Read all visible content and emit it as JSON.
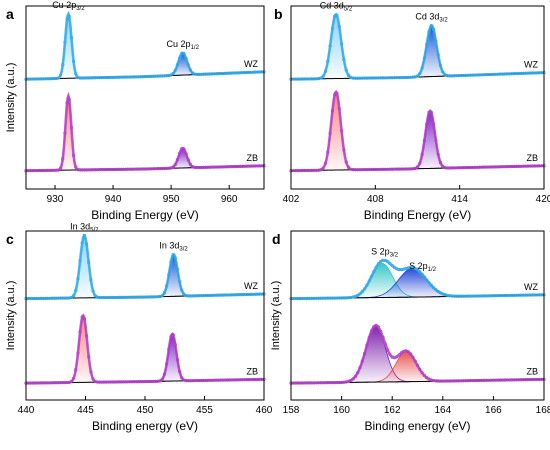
{
  "figure": {
    "panels": [
      {
        "letter": "a"
      },
      {
        "letter": "b"
      },
      {
        "letter": "c"
      },
      {
        "letter": "d"
      }
    ]
  },
  "chart_data": [
    {
      "type": "line",
      "panel": "a",
      "xlabel": "Binding Energy (eV)",
      "ylabel": "Intensity (a.u.)",
      "xlim": [
        925,
        966
      ],
      "xticks": [
        930,
        940,
        950,
        960
      ],
      "grid": false,
      "series": [
        {
          "name": "WZ",
          "color": "#33a8e8",
          "fill_colors": [
            "#7fd2ff",
            "#0d4fd6"
          ],
          "peaks": [
            {
              "center": 932.3,
              "height": 0.78,
              "width": 0.55
            },
            {
              "center": 952.0,
              "height": 0.27,
              "width": 0.75
            }
          ],
          "baseline": [
            {
              "x": 925,
              "y": 0.0
            },
            {
              "x": 945,
              "y": 0.03
            },
            {
              "x": 966,
              "y": 0.09
            }
          ]
        },
        {
          "name": "ZB",
          "color": "#b040c8",
          "fill_colors": [
            "#ff7a7a",
            "#7a1ac8"
          ],
          "peaks": [
            {
              "center": 932.3,
              "height": 0.9,
              "width": 0.5
            },
            {
              "center": 952.0,
              "height": 0.24,
              "width": 0.7
            }
          ],
          "baseline": [
            {
              "x": 925,
              "y": 0.0
            },
            {
              "x": 945,
              "y": 0.02
            },
            {
              "x": 966,
              "y": 0.06
            }
          ]
        }
      ],
      "annotations": [
        {
          "text": "Cu 2p",
          "sub": "3/2",
          "x": 932.3,
          "series": 0
        },
        {
          "text": "Cu 2p",
          "sub": "1/2",
          "x": 952.0,
          "series": 0
        }
      ]
    },
    {
      "type": "line",
      "panel": "b",
      "xlabel": "Binding Energy (eV)",
      "ylabel": "",
      "xlim": [
        402,
        420
      ],
      "xticks": [
        402,
        408,
        414,
        420
      ],
      "grid": false,
      "series": [
        {
          "name": "WZ",
          "color": "#33a8e8",
          "fill_colors": [
            "#7fd2ff",
            "#0d4fd6"
          ],
          "peaks": [
            {
              "center": 405.2,
              "height": 0.78,
              "width": 0.36
            },
            {
              "center": 412.0,
              "height": 0.62,
              "width": 0.36
            }
          ],
          "baseline": [
            {
              "x": 402,
              "y": 0.0
            },
            {
              "x": 410,
              "y": 0.02
            },
            {
              "x": 420,
              "y": 0.08
            }
          ]
        },
        {
          "name": "ZB",
          "color": "#b040c8",
          "fill_colors": [
            "#ff7a7a",
            "#7a1ac8"
          ],
          "peaks": [
            {
              "center": 405.2,
              "height": 0.95,
              "width": 0.34
            },
            {
              "center": 411.9,
              "height": 0.7,
              "width": 0.34
            }
          ],
          "baseline": [
            {
              "x": 402,
              "y": 0.0
            },
            {
              "x": 410,
              "y": 0.02
            },
            {
              "x": 420,
              "y": 0.06
            }
          ]
        }
      ],
      "annotations": [
        {
          "text": "Cd 3d",
          "sub": "5/2",
          "x": 405.2,
          "series": 0
        },
        {
          "text": "Cd 3d",
          "sub": "3/2",
          "x": 412.0,
          "series": 0
        }
      ]
    },
    {
      "type": "line",
      "panel": "c",
      "xlabel": "Binding energy (eV)",
      "ylabel": "Intensity (a.u.)",
      "xlim": [
        440,
        460
      ],
      "xticks": [
        440,
        445,
        450,
        455,
        460
      ],
      "grid": false,
      "series": [
        {
          "name": "WZ",
          "color": "#33a8e8",
          "fill_colors": [
            "#7fd2ff",
            "#0d4fd6"
          ],
          "peaks": [
            {
              "center": 444.9,
              "height": 0.82,
              "width": 0.35
            },
            {
              "center": 452.4,
              "height": 0.55,
              "width": 0.35
            }
          ],
          "baseline": [
            {
              "x": 440,
              "y": 0.0
            },
            {
              "x": 450,
              "y": 0.02
            },
            {
              "x": 460,
              "y": 0.06
            }
          ]
        },
        {
          "name": "ZB",
          "color": "#b040c8",
          "fill_colors": [
            "#ff7a7a",
            "#7a1ac8"
          ],
          "peaks": [
            {
              "center": 444.8,
              "height": 0.88,
              "width": 0.34
            },
            {
              "center": 452.3,
              "height": 0.62,
              "width": 0.34
            }
          ],
          "baseline": [
            {
              "x": 440,
              "y": 0.0
            },
            {
              "x": 450,
              "y": 0.02
            },
            {
              "x": 460,
              "y": 0.05
            }
          ]
        }
      ],
      "annotations": [
        {
          "text": "In 3d",
          "sub": "5/2",
          "x": 444.9,
          "series": 0
        },
        {
          "text": "In 3d",
          "sub": "3/2",
          "x": 452.4,
          "series": 0
        }
      ]
    },
    {
      "type": "line",
      "panel": "d",
      "xlabel": "Binding energy (eV)",
      "ylabel": "Intensity (a.u.)",
      "xlim": [
        158,
        168
      ],
      "xticks": [
        158,
        160,
        162,
        164,
        166,
        168
      ],
      "grid": false,
      "series": [
        {
          "name": "WZ",
          "color": "#33a8e8",
          "fill_colors": [
            "#2ec4c4",
            "#1a3fd6"
          ],
          "peaks": [
            {
              "center": 161.6,
              "height": 0.45,
              "width": 0.42
            },
            {
              "center": 162.8,
              "height": 0.38,
              "width": 0.55
            }
          ],
          "baseline": [
            {
              "x": 158,
              "y": 0.0
            },
            {
              "x": 163,
              "y": 0.02
            },
            {
              "x": 168,
              "y": 0.05
            }
          ]
        },
        {
          "name": "ZB",
          "color": "#b040c8",
          "fill_colors": [
            "#7a1aa8",
            "#e84a4a"
          ],
          "peaks": [
            {
              "center": 161.35,
              "height": 0.74,
              "width": 0.38
            },
            {
              "center": 162.55,
              "height": 0.4,
              "width": 0.4
            }
          ],
          "baseline": [
            {
              "x": 158,
              "y": 0.0
            },
            {
              "x": 163,
              "y": 0.02
            },
            {
              "x": 168,
              "y": 0.05
            }
          ]
        }
      ],
      "annotations": [
        {
          "text": "S 2p",
          "sub": "3/2",
          "x": 161.7,
          "series": 0
        },
        {
          "text": "S 2p",
          "sub": "1/2",
          "x": 163.2,
          "series": 0
        }
      ]
    }
  ]
}
